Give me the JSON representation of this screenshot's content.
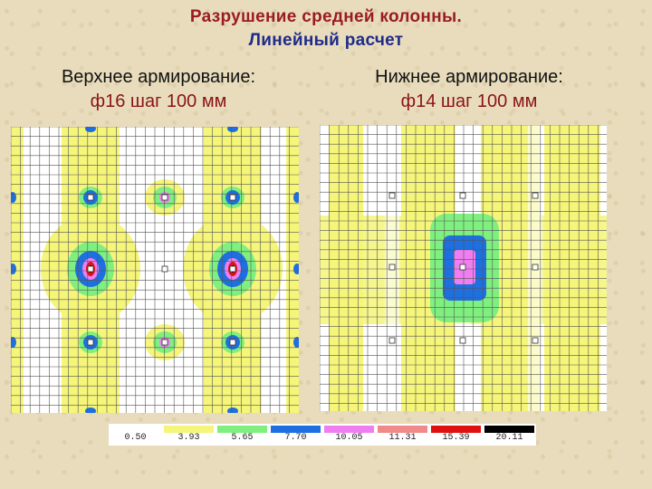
{
  "title": {
    "line1": "Разрушение средней колонны.",
    "line2": "Линейный расчет"
  },
  "left_panel": {
    "caption_line1": "Верхнее армирование:",
    "caption_line2": "ф16 шаг 100 мм"
  },
  "right_panel": {
    "caption_line1": "Нижнее армирование:",
    "caption_line2": "ф14 шаг 100 мм"
  },
  "legend": [
    {
      "value": "0.50",
      "color": "#ffffff"
    },
    {
      "value": "3.93",
      "color": "#f5f57a"
    },
    {
      "value": "5.65",
      "color": "#7ff07f"
    },
    {
      "value": "7.70",
      "color": "#1e6fe0"
    },
    {
      "value": "10.05",
      "color": "#f07ef0"
    },
    {
      "value": "11.31",
      "color": "#f08a8a"
    },
    {
      "value": "15.39",
      "color": "#e01010"
    },
    {
      "value": "20.11",
      "color": "#000000"
    }
  ],
  "colors": {
    "white": "#ffffff",
    "yellow": "#f5f57a",
    "green": "#7ff07f",
    "blue": "#1e6fe0",
    "magenta": "#f07ef0",
    "red": "#e01010",
    "black": "#000000",
    "grid": "#555555"
  }
}
